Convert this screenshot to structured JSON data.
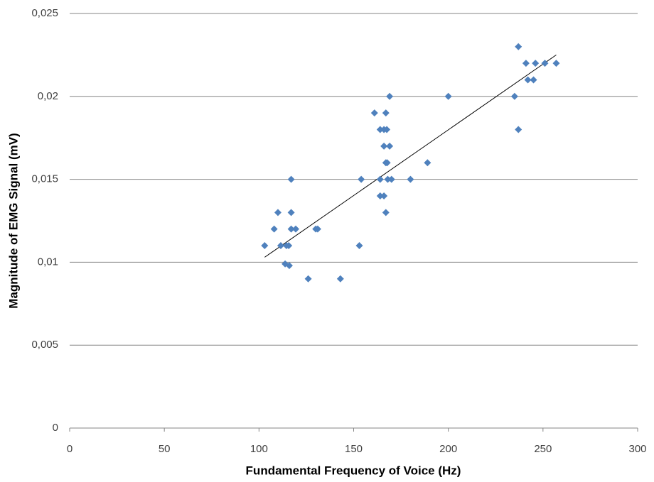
{
  "chart_data": {
    "type": "scatter",
    "xlabel": "Fundamental Frequency of Voice (Hz)",
    "ylabel": "Magnitude of EMG Signal (mV)",
    "xlim": [
      0,
      300
    ],
    "xticks": [
      0,
      50,
      100,
      150,
      200,
      250,
      300
    ],
    "ylim": [
      0,
      0.025
    ],
    "yticks": [
      0,
      {
        "value": 0.005,
        "label": "0,005"
      },
      {
        "value": 0.01,
        "label": "0,01"
      },
      {
        "value": 0.015,
        "label": "0,015"
      },
      {
        "value": 0.02,
        "label": "0,02"
      },
      {
        "value": 0.025,
        "label": "0,025"
      }
    ],
    "grid": true,
    "color": "#4f81bd",
    "x": [
      103,
      108,
      110,
      111.5,
      113.8,
      114.5,
      115.7,
      116,
      117,
      117,
      117,
      119.4,
      126,
      130,
      131,
      143,
      153,
      154,
      161,
      164,
      164,
      164,
      166,
      166,
      166,
      167,
      167,
      167.5,
      167,
      167.7,
      168,
      169,
      169,
      170,
      180,
      189,
      200,
      235,
      237,
      237,
      241,
      242,
      245,
      246,
      251,
      257
    ],
    "y": [
      0.011,
      0.012,
      0.013,
      0.011,
      0.0099,
      0.011,
      0.011,
      0.0098,
      0.015,
      0.013,
      0.012,
      0.012,
      0.009,
      0.012,
      0.012,
      0.009,
      0.011,
      0.015,
      0.019,
      0.018,
      0.015,
      0.014,
      0.018,
      0.014,
      0.017,
      0.016,
      0.019,
      0.018,
      0.013,
      0.016,
      0.015,
      0.017,
      0.02,
      0.015,
      0.015,
      0.016,
      0.02,
      0.02,
      0.023,
      0.018,
      0.022,
      0.021,
      0.021,
      0.022,
      0.022,
      0.022
    ],
    "trendline": {
      "x": [
        103,
        257
      ],
      "y": [
        0.0103,
        0.0225
      ]
    }
  }
}
